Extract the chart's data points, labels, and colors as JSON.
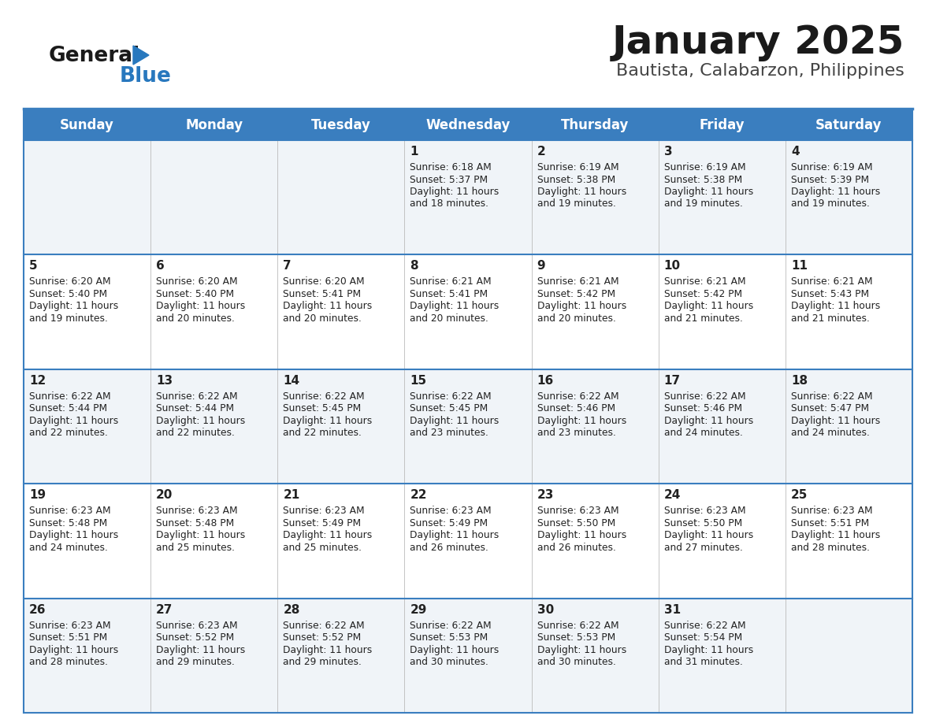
{
  "title": "January 2025",
  "subtitle": "Bautista, Calabarzon, Philippines",
  "days_of_week": [
    "Sunday",
    "Monday",
    "Tuesday",
    "Wednesday",
    "Thursday",
    "Friday",
    "Saturday"
  ],
  "header_bg": "#3a7ebf",
  "header_text_color": "#ffffff",
  "row_bg_even": "#f0f4f8",
  "row_bg_odd": "#ffffff",
  "cell_border_color": "#3a7ebf",
  "title_color": "#1a1a1a",
  "subtitle_color": "#444444",
  "text_color": "#222222",
  "logo_general_color": "#1a1a1a",
  "logo_blue_color": "#2878be",
  "calendar_data": [
    [
      null,
      null,
      null,
      {
        "day": 1,
        "sunrise": "6:18 AM",
        "sunset": "5:37 PM",
        "daylight_hrs": 11,
        "daylight_min": 18
      },
      {
        "day": 2,
        "sunrise": "6:19 AM",
        "sunset": "5:38 PM",
        "daylight_hrs": 11,
        "daylight_min": 19
      },
      {
        "day": 3,
        "sunrise": "6:19 AM",
        "sunset": "5:38 PM",
        "daylight_hrs": 11,
        "daylight_min": 19
      },
      {
        "day": 4,
        "sunrise": "6:19 AM",
        "sunset": "5:39 PM",
        "daylight_hrs": 11,
        "daylight_min": 19
      }
    ],
    [
      {
        "day": 5,
        "sunrise": "6:20 AM",
        "sunset": "5:40 PM",
        "daylight_hrs": 11,
        "daylight_min": 19
      },
      {
        "day": 6,
        "sunrise": "6:20 AM",
        "sunset": "5:40 PM",
        "daylight_hrs": 11,
        "daylight_min": 20
      },
      {
        "day": 7,
        "sunrise": "6:20 AM",
        "sunset": "5:41 PM",
        "daylight_hrs": 11,
        "daylight_min": 20
      },
      {
        "day": 8,
        "sunrise": "6:21 AM",
        "sunset": "5:41 PM",
        "daylight_hrs": 11,
        "daylight_min": 20
      },
      {
        "day": 9,
        "sunrise": "6:21 AM",
        "sunset": "5:42 PM",
        "daylight_hrs": 11,
        "daylight_min": 20
      },
      {
        "day": 10,
        "sunrise": "6:21 AM",
        "sunset": "5:42 PM",
        "daylight_hrs": 11,
        "daylight_min": 21
      },
      {
        "day": 11,
        "sunrise": "6:21 AM",
        "sunset": "5:43 PM",
        "daylight_hrs": 11,
        "daylight_min": 21
      }
    ],
    [
      {
        "day": 12,
        "sunrise": "6:22 AM",
        "sunset": "5:44 PM",
        "daylight_hrs": 11,
        "daylight_min": 22
      },
      {
        "day": 13,
        "sunrise": "6:22 AM",
        "sunset": "5:44 PM",
        "daylight_hrs": 11,
        "daylight_min": 22
      },
      {
        "day": 14,
        "sunrise": "6:22 AM",
        "sunset": "5:45 PM",
        "daylight_hrs": 11,
        "daylight_min": 22
      },
      {
        "day": 15,
        "sunrise": "6:22 AM",
        "sunset": "5:45 PM",
        "daylight_hrs": 11,
        "daylight_min": 23
      },
      {
        "day": 16,
        "sunrise": "6:22 AM",
        "sunset": "5:46 PM",
        "daylight_hrs": 11,
        "daylight_min": 23
      },
      {
        "day": 17,
        "sunrise": "6:22 AM",
        "sunset": "5:46 PM",
        "daylight_hrs": 11,
        "daylight_min": 24
      },
      {
        "day": 18,
        "sunrise": "6:22 AM",
        "sunset": "5:47 PM",
        "daylight_hrs": 11,
        "daylight_min": 24
      }
    ],
    [
      {
        "day": 19,
        "sunrise": "6:23 AM",
        "sunset": "5:48 PM",
        "daylight_hrs": 11,
        "daylight_min": 24
      },
      {
        "day": 20,
        "sunrise": "6:23 AM",
        "sunset": "5:48 PM",
        "daylight_hrs": 11,
        "daylight_min": 25
      },
      {
        "day": 21,
        "sunrise": "6:23 AM",
        "sunset": "5:49 PM",
        "daylight_hrs": 11,
        "daylight_min": 25
      },
      {
        "day": 22,
        "sunrise": "6:23 AM",
        "sunset": "5:49 PM",
        "daylight_hrs": 11,
        "daylight_min": 26
      },
      {
        "day": 23,
        "sunrise": "6:23 AM",
        "sunset": "5:50 PM",
        "daylight_hrs": 11,
        "daylight_min": 26
      },
      {
        "day": 24,
        "sunrise": "6:23 AM",
        "sunset": "5:50 PM",
        "daylight_hrs": 11,
        "daylight_min": 27
      },
      {
        "day": 25,
        "sunrise": "6:23 AM",
        "sunset": "5:51 PM",
        "daylight_hrs": 11,
        "daylight_min": 28
      }
    ],
    [
      {
        "day": 26,
        "sunrise": "6:23 AM",
        "sunset": "5:51 PM",
        "daylight_hrs": 11,
        "daylight_min": 28
      },
      {
        "day": 27,
        "sunrise": "6:23 AM",
        "sunset": "5:52 PM",
        "daylight_hrs": 11,
        "daylight_min": 29
      },
      {
        "day": 28,
        "sunrise": "6:22 AM",
        "sunset": "5:52 PM",
        "daylight_hrs": 11,
        "daylight_min": 29
      },
      {
        "day": 29,
        "sunrise": "6:22 AM",
        "sunset": "5:53 PM",
        "daylight_hrs": 11,
        "daylight_min": 30
      },
      {
        "day": 30,
        "sunrise": "6:22 AM",
        "sunset": "5:53 PM",
        "daylight_hrs": 11,
        "daylight_min": 30
      },
      {
        "day": 31,
        "sunrise": "6:22 AM",
        "sunset": "5:54 PM",
        "daylight_hrs": 11,
        "daylight_min": 31
      },
      null
    ]
  ]
}
